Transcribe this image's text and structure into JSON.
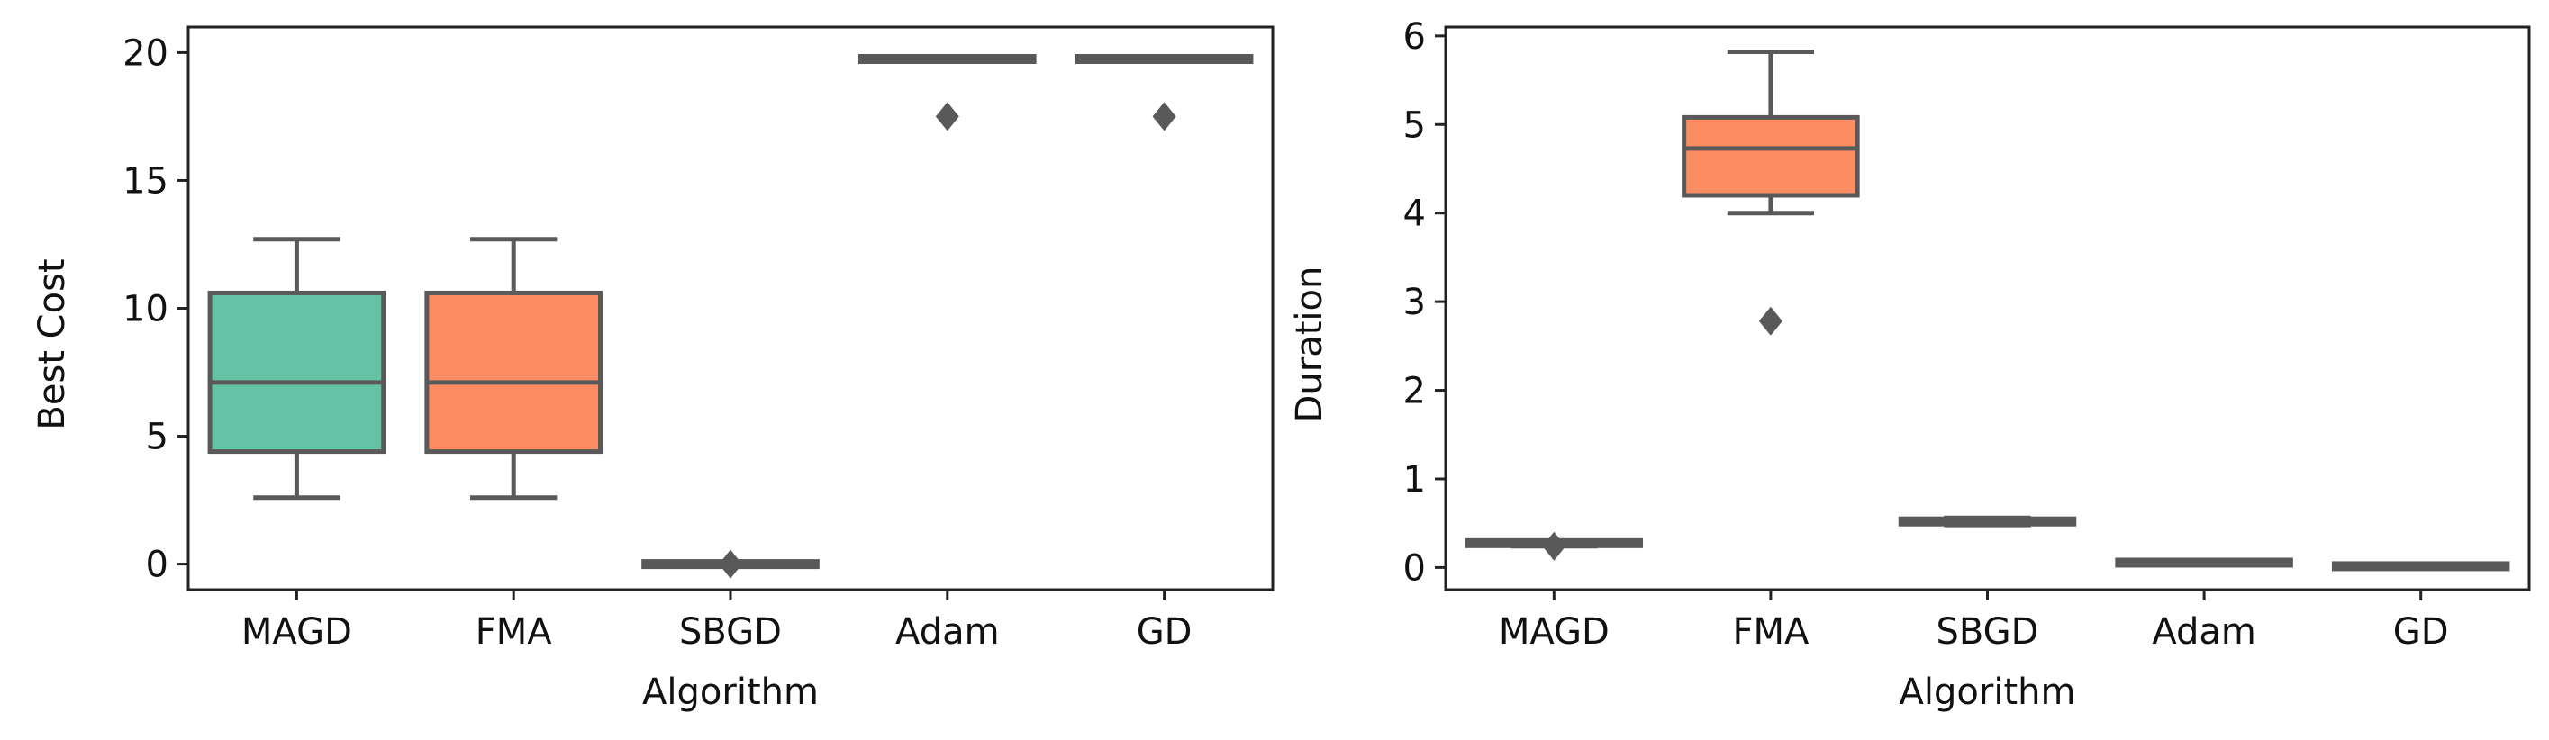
{
  "chart_data": [
    {
      "type": "box",
      "title": "",
      "xlabel": "Algorithm",
      "ylabel": "Best Cost",
      "ylim": [
        -1,
        21
      ],
      "yticks": [
        0,
        5,
        10,
        15,
        20
      ],
      "categories": [
        "MAGD",
        "FMA",
        "SBGD",
        "Adam",
        "GD"
      ],
      "grid": false,
      "colors": [
        "#66c2a5",
        "#fc8d62",
        "#8da0cb",
        "#e78ac3",
        "#a6d854"
      ],
      "edge_color": "#595959",
      "boxes": [
        {
          "category": "MAGD",
          "whisker_low": 2.6,
          "q1": 4.4,
          "median": 7.1,
          "q3": 10.6,
          "whisker_high": 12.7,
          "outliers": []
        },
        {
          "category": "FMA",
          "whisker_low": 2.6,
          "q1": 4.4,
          "median": 7.1,
          "q3": 10.6,
          "whisker_high": 12.7,
          "outliers": []
        },
        {
          "category": "SBGD",
          "whisker_low": 0.0,
          "q1": 0.0,
          "median": 0.0,
          "q3": 0.0,
          "whisker_high": 0.0,
          "outliers": [
            0.0
          ]
        },
        {
          "category": "Adam",
          "whisker_low": 19.7,
          "q1": 19.7,
          "median": 19.75,
          "q3": 19.8,
          "whisker_high": 19.8,
          "outliers": [
            17.5
          ]
        },
        {
          "category": "GD",
          "whisker_low": 19.7,
          "q1": 19.7,
          "median": 19.75,
          "q3": 19.8,
          "whisker_high": 19.8,
          "outliers": [
            17.5
          ]
        }
      ]
    },
    {
      "type": "box",
      "title": "",
      "xlabel": "Algorithm",
      "ylabel": "Duration",
      "ylim": [
        -0.25,
        6.1
      ],
      "yticks": [
        0,
        1,
        2,
        3,
        4,
        5,
        6
      ],
      "categories": [
        "MAGD",
        "FMA",
        "SBGD",
        "Adam",
        "GD"
      ],
      "grid": false,
      "colors": [
        "#66c2a5",
        "#fc8d62",
        "#8da0cb",
        "#e78ac3",
        "#a6d854"
      ],
      "edge_color": "#595959",
      "boxes": [
        {
          "category": "MAGD",
          "whisker_low": 0.24,
          "q1": 0.25,
          "median": 0.27,
          "q3": 0.3,
          "whisker_high": 0.3,
          "outliers": [
            0.24
          ]
        },
        {
          "category": "FMA",
          "whisker_low": 4.0,
          "q1": 4.2,
          "median": 4.73,
          "q3": 5.08,
          "whisker_high": 5.82,
          "outliers": [
            2.78
          ]
        },
        {
          "category": "SBGD",
          "whisker_low": 0.48,
          "q1": 0.49,
          "median": 0.52,
          "q3": 0.55,
          "whisker_high": 0.56,
          "outliers": []
        },
        {
          "category": "Adam",
          "whisker_low": 0.05,
          "q1": 0.05,
          "median": 0.05,
          "q3": 0.06,
          "whisker_high": 0.06,
          "outliers": []
        },
        {
          "category": "GD",
          "whisker_low": 0.01,
          "q1": 0.01,
          "median": 0.01,
          "q3": 0.02,
          "whisker_high": 0.02,
          "outliers": []
        }
      ]
    }
  ]
}
